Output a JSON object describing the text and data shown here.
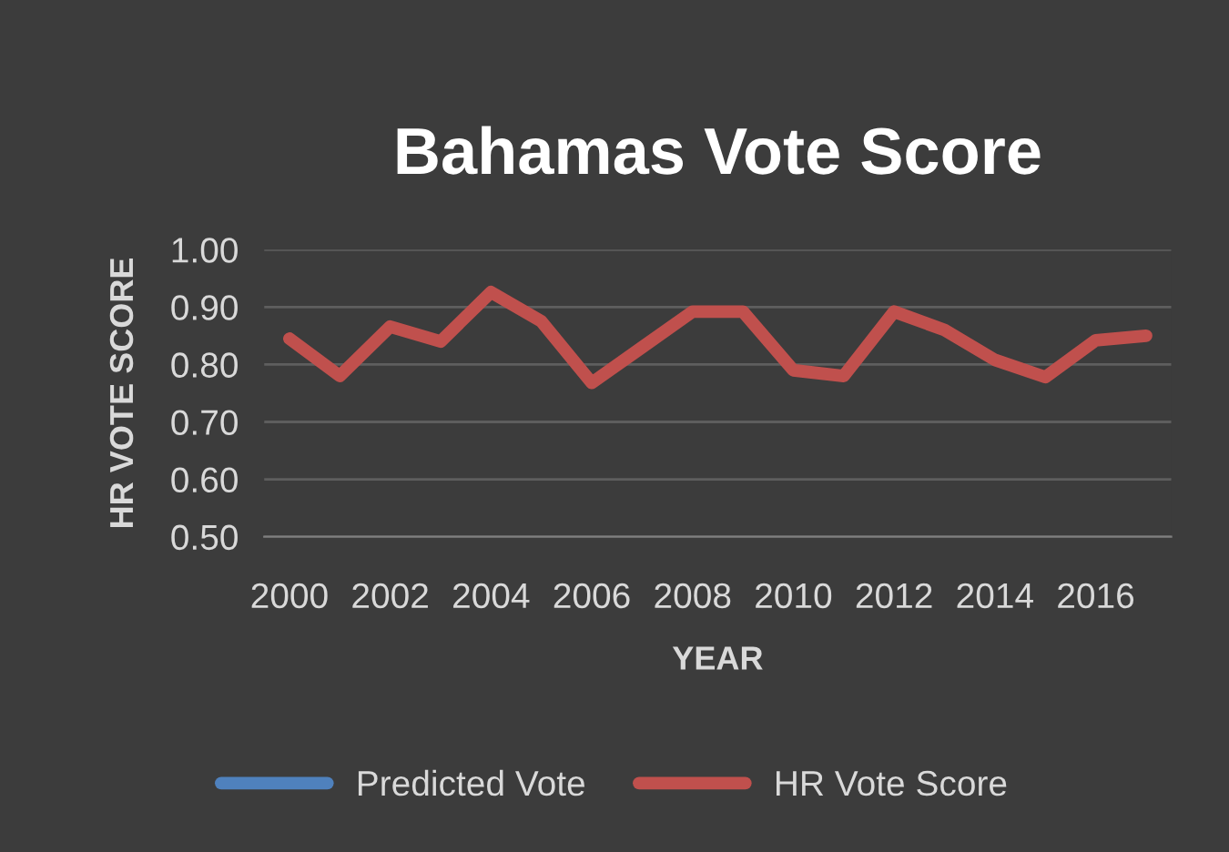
{
  "chart_data": {
    "type": "line",
    "title": "Bahamas Vote Score",
    "xlabel": "YEAR",
    "ylabel": "HR VOTE SCORE",
    "categories": [
      "2000",
      null,
      "2002",
      null,
      "2004",
      null,
      "2006",
      null,
      "2008",
      null,
      "2010",
      null,
      "2012",
      null,
      "2014",
      null,
      "2016",
      null
    ],
    "series": [
      {
        "name": "Predicted Vote",
        "color": "#4f81bd",
        "values": [
          null,
          null,
          null,
          null,
          null,
          null,
          null,
          null,
          null,
          null,
          null,
          null,
          null,
          null,
          null,
          null,
          null,
          null
        ]
      },
      {
        "name": "HR Vote Score",
        "color": "#c0504d",
        "values": [
          0.845,
          0.78,
          0.866,
          0.84,
          0.926,
          0.875,
          0.768,
          0.83,
          0.892,
          0.892,
          0.79,
          0.78,
          0.892,
          0.86,
          0.808,
          0.778,
          0.842,
          0.85
        ]
      }
    ],
    "ylim": [
      0.5,
      1.0
    ],
    "yticks": [
      {
        "value": 0.5,
        "label": "0.50"
      },
      {
        "value": 0.6,
        "label": "0.60"
      },
      {
        "value": 0.7,
        "label": "0.70"
      },
      {
        "value": 0.8,
        "label": "0.80"
      },
      {
        "value": 0.9,
        "label": "0.90"
      },
      {
        "value": 1.0,
        "label": "1.00"
      }
    ],
    "grid": "y",
    "legend": "bottom",
    "marker": "none",
    "line_style": "solid"
  }
}
